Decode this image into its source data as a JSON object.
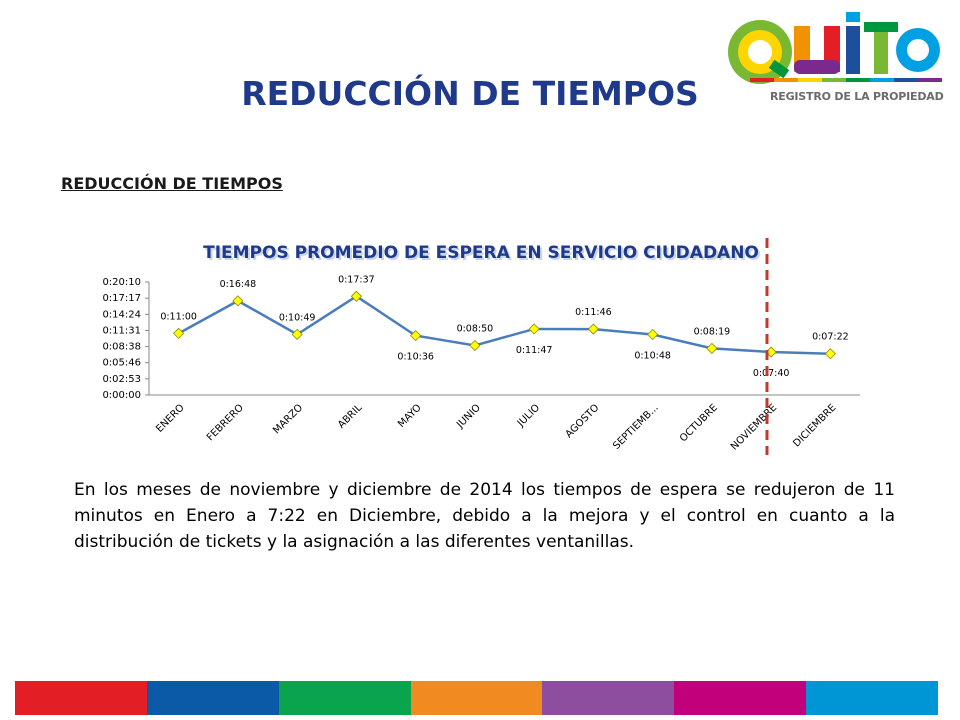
{
  "slide": {
    "title": "REDUCCIÓN DE TIEMPOS",
    "subtitle": "REDUCCIÓN DE TIEMPOS",
    "body": "En los meses de noviembre y diciembre de 2014 los tiempos de espera se redujeron de 11 minutos en Enero a 7:22 en Diciembre, debido a la mejora y el control en cuanto a la distribución de tickets y la asignación a las diferentes ventanillas."
  },
  "logo": {
    "wordmark": "QUITO",
    "caption": "REGISTRO DE LA PROPIEDAD",
    "colors": [
      "#e31e24",
      "#f39200",
      "#ffd500",
      "#78b833",
      "#009640",
      "#00a0e3",
      "#1d4f9c",
      "#7a2a8c"
    ]
  },
  "chart_data": {
    "type": "line",
    "title": "TIEMPOS PROMEDIO DE ESPERA EN SERVICIO CIUDADANO",
    "categories": [
      "ENERO",
      "FEBRERO",
      "MARZO",
      "ABRIL",
      "MAYO",
      "JUNIO",
      "JULIO",
      "AGOSTO",
      "SEPTIEMB...",
      "OCTUBRE",
      "NOVIEMBRE",
      "DICIEMBRE"
    ],
    "values": [
      "0:11:00",
      "0:16:48",
      "0:10:49",
      "0:17:37",
      "0:10:36",
      "0:08:50",
      "0:11:47",
      "0:11:46",
      "0:10:48",
      "0:08:19",
      "0:07:40",
      "0:07:22"
    ],
    "data_labels": [
      "0:11:00",
      "0:16:48",
      "0:10:49",
      "0:17:37",
      "0:10:36",
      "0:08:50",
      "0:11:47",
      "0:11:46",
      "0:10:48",
      "0:08:19",
      "0:07:40",
      "0:07:22"
    ],
    "y_ticks": [
      "0:00:00",
      "0:02:53",
      "0:05:46",
      "0:08:38",
      "0:11:31",
      "0:14:24",
      "0:17:17",
      "0:20:10"
    ],
    "ylim": [
      "0:00:00",
      "0:20:10"
    ],
    "xlabel": "",
    "ylabel": "",
    "grid": false,
    "legend": "none",
    "line_color": "#4a7ebb",
    "marker_color": "#ffff00",
    "title_color": "#1f3a8a",
    "marker_reference": {
      "between": [
        "NOVIEMBRE",
        "OCTUBRE"
      ],
      "style": "dashed",
      "color": "#c0392b"
    }
  },
  "footer": {
    "colors": [
      "#e31e24",
      "#0b5aa8",
      "#0aa44e",
      "#f18a21",
      "#8e4ea0",
      "#c3007b",
      "#0096d6"
    ]
  }
}
